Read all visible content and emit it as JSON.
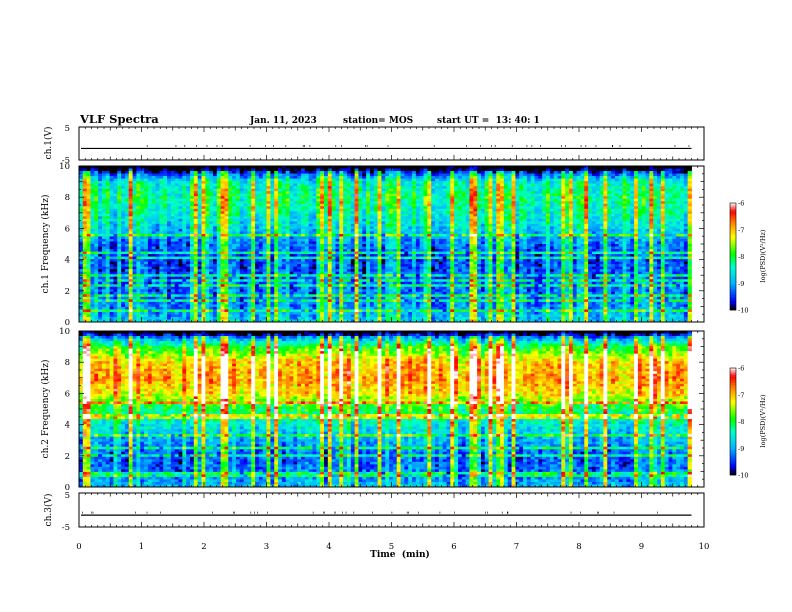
{
  "header": {
    "title": "VLF Spectra",
    "date": "Jan. 11, 2023",
    "station": "station= MOS",
    "start": "start UT =  13: 40: 1"
  },
  "colors": {
    "colormap": [
      "#000000",
      "#0000ff",
      "#00b4ff",
      "#00ffcc",
      "#00ff00",
      "#ffff00",
      "#ff9000",
      "#ff0000",
      "#ffffff"
    ]
  },
  "chart_data": [
    {
      "type": "line",
      "id": "ch1-waveform",
      "ylabel": "ch.1(V)",
      "ylim": [
        -5,
        5
      ],
      "y_ticks": [
        "5",
        "-5"
      ],
      "x_range": [
        0,
        10
      ],
      "level": -1.5
    },
    {
      "type": "heatmap",
      "id": "ch1-spectrogram",
      "ylabel": "ch.1\nFrequency (kHz)",
      "ylim": [
        0,
        10
      ],
      "y_ticks": [
        "0",
        "2",
        "4",
        "6",
        "8",
        "10"
      ],
      "x_range": [
        0,
        9.8
      ],
      "colorbar": {
        "label": "log(PSD)(V²/Hz)",
        "range": [
          -10,
          -6
        ],
        "ticks": [
          "-6",
          "-7",
          "-8",
          "-9",
          "-10"
        ]
      },
      "profile_freq_khz": [
        0,
        1,
        2,
        3,
        4,
        5,
        6,
        7,
        8,
        9,
        9.5,
        10
      ],
      "profile_log_psd": [
        -8.8,
        -9.2,
        -9.3,
        -9.4,
        -9.5,
        -9.3,
        -8.8,
        -8.5,
        -8.3,
        -8.6,
        -9.5,
        -10.5
      ]
    },
    {
      "type": "heatmap",
      "id": "ch2-spectrogram",
      "ylabel": "ch.2\nFrequency (kHz)",
      "ylim": [
        0,
        10
      ],
      "y_ticks": [
        "0",
        "2",
        "4",
        "6",
        "8",
        "10"
      ],
      "x_range": [
        0,
        9.8
      ],
      "colorbar": {
        "label": "log(PSD)(V²/Hz)",
        "range": [
          -10,
          -6
        ],
        "ticks": [
          "-6",
          "-7",
          "-8",
          "-9",
          "-10"
        ]
      },
      "profile_freq_khz": [
        0,
        1,
        2,
        3,
        4,
        5,
        6,
        7,
        8,
        9,
        9.5,
        10
      ],
      "profile_log_psd": [
        -8.9,
        -9.3,
        -9.4,
        -9.0,
        -8.6,
        -8.1,
        -7.2,
        -6.9,
        -7.1,
        -8.0,
        -9.0,
        -10.5
      ]
    },
    {
      "type": "line",
      "id": "ch3-waveform",
      "ylabel": "ch.3(V)",
      "ylim": [
        -5,
        5
      ],
      "y_ticks": [
        "5",
        "-5"
      ],
      "x_range": [
        0,
        10
      ],
      "level": -1.5
    }
  ],
  "x_axis": {
    "label": "Time  (min)",
    "ticks": [
      "0",
      "1",
      "2",
      "3",
      "4",
      "5",
      "6",
      "7",
      "8",
      "9",
      "10"
    ]
  }
}
